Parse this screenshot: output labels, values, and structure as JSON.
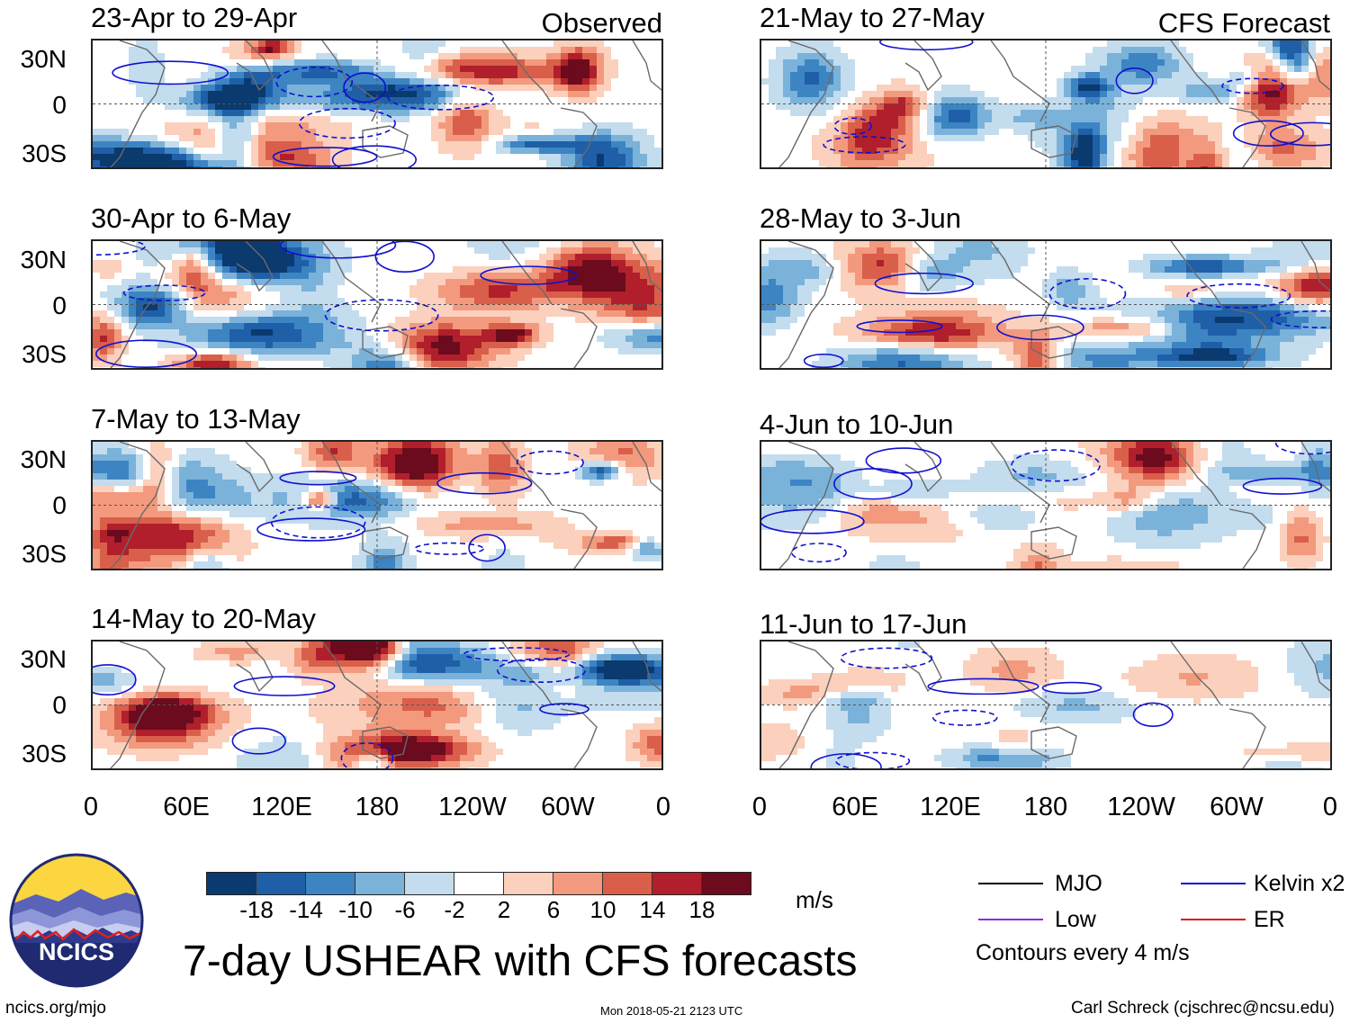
{
  "header": {
    "left_label": "Observed",
    "right_label": "CFS Forecast"
  },
  "panels": {
    "observed": [
      {
        "title": "23-Apr to 29-Apr"
      },
      {
        "title": "30-Apr to 6-May"
      },
      {
        "title": "7-May to 13-May"
      },
      {
        "title": "14-May to 20-May"
      }
    ],
    "forecast": [
      {
        "title": "21-May to 27-May"
      },
      {
        "title": "28-May to 3-Jun"
      },
      {
        "title": "4-Jun to 10-Jun"
      },
      {
        "title": "11-Jun to 17-Jun"
      }
    ]
  },
  "axes": {
    "y_ticks": [
      "30N",
      "0",
      "30S"
    ],
    "x_ticks": [
      "0",
      "60E",
      "120E",
      "180",
      "120W",
      "60W",
      "0"
    ]
  },
  "colorbar": {
    "labels": [
      "-18",
      "-14",
      "-10",
      "-6",
      "-2",
      "2",
      "6",
      "10",
      "14",
      "18"
    ],
    "colors": [
      "#0a3a6e",
      "#1f5fa8",
      "#3d84c3",
      "#7ab2da",
      "#c3dcee",
      "#ffffff",
      "#fbd0bd",
      "#f39a7e",
      "#d95f4b",
      "#b01f2b",
      "#6b0b1d"
    ],
    "units": "m/s"
  },
  "legend": {
    "items": [
      {
        "label": "MJO",
        "color": "#000000"
      },
      {
        "label": "Kelvin x2",
        "color": "#1010d0"
      },
      {
        "label": "Low",
        "color": "#8a2be2"
      },
      {
        "label": "ER",
        "color": "#e01010"
      }
    ],
    "note": "Contours every 4 m/s"
  },
  "logo": {
    "text": "NCICS"
  },
  "footer": {
    "title": "7-day USHEAR with CFS forecasts",
    "url": "ncics.org/mjo",
    "timestamp": "Mon 2018-05-21 2123 UTC",
    "author": "Carl Schreck (cjschrec@ncsu.edu)"
  },
  "chart_data": {
    "type": "heatmap",
    "variable": "7-day USHEAR",
    "units": "m/s",
    "lat_ticks": [
      "30N",
      "0",
      "30S"
    ],
    "lon_ticks": [
      "0",
      "60E",
      "120E",
      "180",
      "120W",
      "60W",
      "0"
    ],
    "color_levels": [
      -18,
      -14,
      -10,
      -6,
      -2,
      2,
      6,
      10,
      14,
      18
    ],
    "contour_interval": 4,
    "panels": [
      {
        "column": "Observed",
        "period": "23-Apr to 29-Apr"
      },
      {
        "column": "Observed",
        "period": "30-Apr to 6-May"
      },
      {
        "column": "Observed",
        "period": "7-May to 13-May"
      },
      {
        "column": "Observed",
        "period": "14-May to 20-May"
      },
      {
        "column": "CFS Forecast",
        "period": "21-May to 27-May"
      },
      {
        "column": "CFS Forecast",
        "period": "28-May to 3-Jun"
      },
      {
        "column": "CFS Forecast",
        "period": "4-Jun to 10-Jun"
      },
      {
        "column": "CFS Forecast",
        "period": "11-Jun to 17-Jun"
      }
    ]
  }
}
